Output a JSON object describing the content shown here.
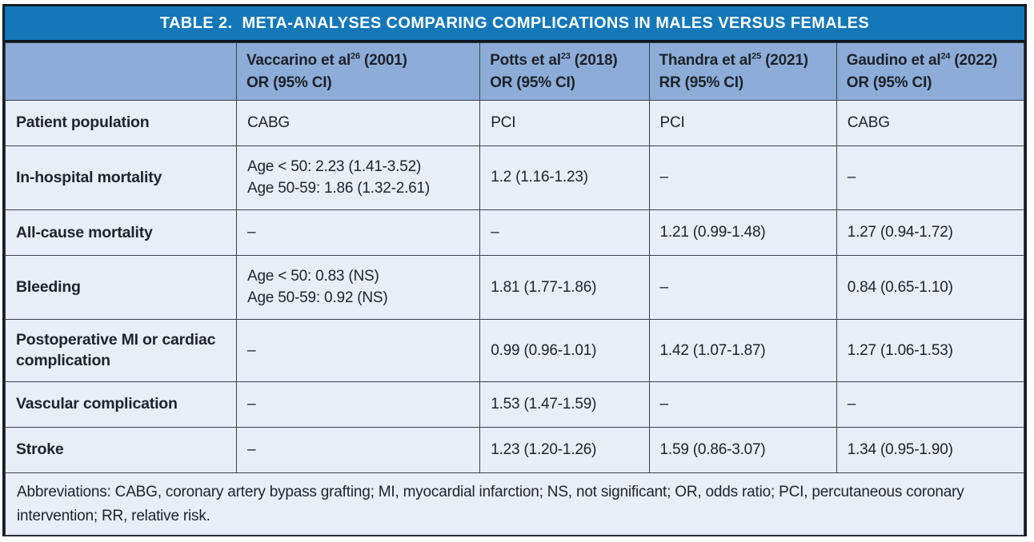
{
  "table": {
    "title_label": "TABLE 2.",
    "title_text": "META-ANALYSES COMPARING COMPLICATIONS IN MALES VERSUS FEMALES",
    "columns": [
      {
        "name_pre": "Vaccarino et al",
        "citation_sup": "26",
        "name_post": " (2001)",
        "measure": "OR (95% CI)"
      },
      {
        "name_pre": "Potts et al",
        "citation_sup": "23",
        "name_post": " (2018)",
        "measure": "OR (95% CI)"
      },
      {
        "name_pre": "Thandra et al",
        "citation_sup": "25",
        "name_post": " (2021)",
        "measure": "RR (95% CI)"
      },
      {
        "name_pre": "Gaudino et al",
        "citation_sup": "24",
        "name_post": " (2022)",
        "measure": "OR (95% CI)"
      }
    ],
    "rows": [
      {
        "label": "Patient population",
        "cells": [
          "CABG",
          "PCI",
          "PCI",
          "CABG"
        ]
      },
      {
        "label": "In-hospital mortality",
        "cells": [
          [
            "Age < 50: 2.23 (1.41-3.52)",
            "Age 50-59: 1.86 (1.32-2.61)"
          ],
          "1.2 (1.16-1.23)",
          "–",
          "–"
        ]
      },
      {
        "label": "All-cause mortality",
        "cells": [
          "–",
          "–",
          "1.21 (0.99-1.48)",
          "1.27 (0.94-1.72)"
        ]
      },
      {
        "label": "Bleeding",
        "cells": [
          [
            "Age < 50: 0.83 (NS)",
            "Age 50-59: 0.92 (NS)"
          ],
          "1.81 (1.77-1.86)",
          "–",
          "0.84 (0.65-1.10)"
        ]
      },
      {
        "label": "Postoperative MI or cardiac complication",
        "cells": [
          "–",
          "0.99 (0.96-1.01)",
          "1.42 (1.07-1.87)",
          "1.27 (1.06-1.53)"
        ]
      },
      {
        "label": "Vascular complication",
        "cells": [
          "–",
          "1.53 (1.47-1.59)",
          "–",
          "–"
        ]
      },
      {
        "label": "Stroke",
        "cells": [
          "–",
          "1.23 (1.20-1.26)",
          "1.59 (0.86-3.07)",
          "1.34 (0.95-1.90)"
        ]
      }
    ],
    "footnote": "Abbreviations: CABG, coronary artery bypass grafting; MI, myocardial infarction; NS, not significant; OR, odds ratio; PCI, percutaneous coronary intervention; RR, relative risk.",
    "colors": {
      "title_bg": "#1477b8",
      "title_text": "#ffffff",
      "header_bg": "#8dacd8",
      "body_bg": "#e9edf5",
      "outer_border": "#151c27",
      "grid_line": "#3a414c",
      "text": "#20242b"
    }
  }
}
